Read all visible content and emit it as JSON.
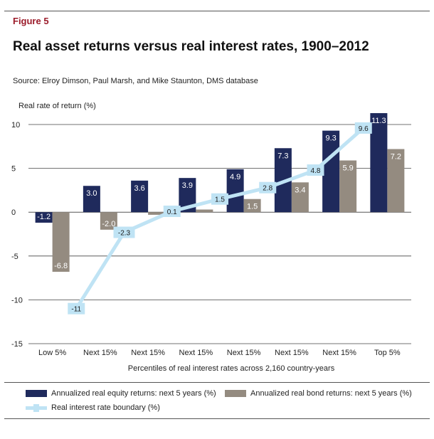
{
  "figure_label": "Figure 5",
  "title": "Real asset returns versus real interest rates, 1900–2012",
  "source": "Source: Elroy Dimson, Paul Marsh, and Mike Staunton, DMS database",
  "colors": {
    "equity": "#1f2a5c",
    "bond": "#948b80",
    "rate": "#bfe3f4",
    "accent": "#9b1b2a"
  },
  "chart_data": {
    "type": "bar",
    "ylabel": "Real rate of return (%)",
    "xlabel": "Percentiles of real interest rates across 2,160 country-years",
    "ylim": [
      -15,
      12
    ],
    "yticks": [
      10,
      5,
      0,
      -5,
      -10,
      -15
    ],
    "categories": [
      "Low 5%",
      "Next 15%",
      "Next 15%",
      "Next 15%",
      "Next 15%",
      "Next 15%",
      "Next 15%",
      "Top 5%"
    ],
    "series": [
      {
        "name": "Annualized real equity returns: next 5 years (%)",
        "kind": "bar",
        "values": [
          -1.2,
          3.0,
          3.6,
          3.9,
          4.9,
          7.3,
          9.3,
          11.3
        ],
        "labels": [
          "-1.2",
          "3.0",
          "3.6",
          "3.9",
          "4.9",
          "7.3",
          "9.3",
          "11.3"
        ]
      },
      {
        "name": "Annualized real bond returns: next 5 years (%)",
        "kind": "bar",
        "values": [
          -6.8,
          -2.0,
          -0.3,
          0.3,
          1.5,
          3.4,
          5.9,
          7.2
        ],
        "labels": [
          "-6.8",
          "-2.0",
          "",
          "",
          "1.5",
          "3.4",
          "5.9",
          "7.2"
        ]
      },
      {
        "name": "Real interest rate boundary (%)",
        "kind": "line",
        "x": [
          0.5,
          1.5,
          2.5,
          3.5,
          4.5,
          5.5,
          6.5
        ],
        "values": [
          -11,
          -2.3,
          0.1,
          1.5,
          2.8,
          4.8,
          9.6
        ],
        "labels": [
          "-11",
          "-2.3",
          "0.1",
          "1.5",
          "2.8",
          "4.8",
          "9.6"
        ]
      }
    ],
    "grid": "horizontal",
    "legend_position": "bottom"
  }
}
